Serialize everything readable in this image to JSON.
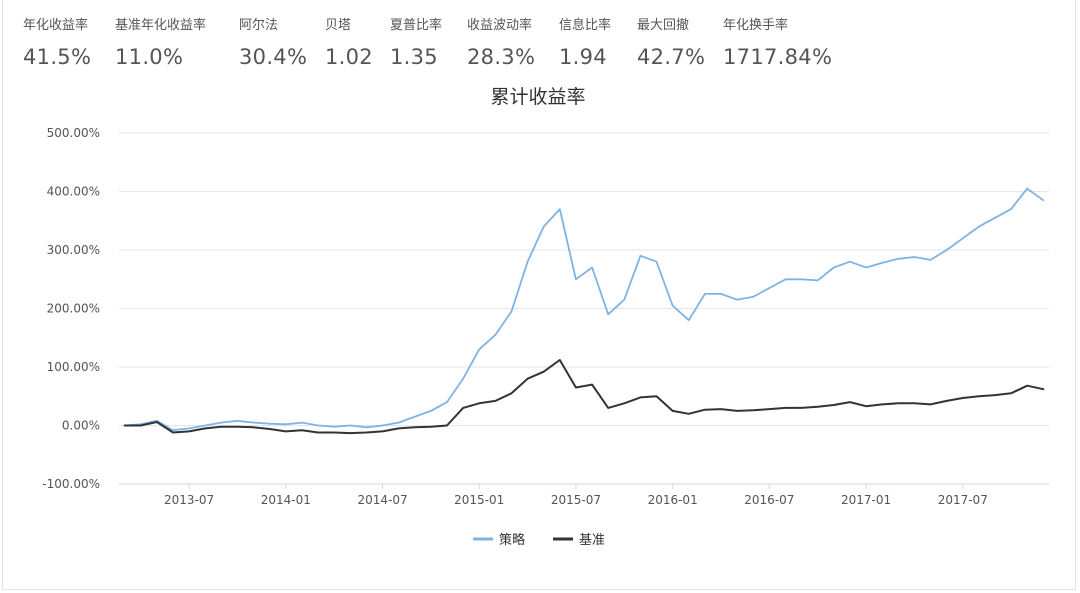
{
  "metrics": [
    {
      "label": "年化收益率",
      "value": "41.5%"
    },
    {
      "label": "基准年化收益率",
      "value": "11.0%"
    },
    {
      "label": "阿尔法",
      "value": "30.4%"
    },
    {
      "label": "贝塔",
      "value": "1.02"
    },
    {
      "label": "夏普比率",
      "value": "1.35"
    },
    {
      "label": "收益波动率",
      "value": "28.3%"
    },
    {
      "label": "信息比率",
      "value": "1.94"
    },
    {
      "label": "最大回撤",
      "value": "42.7%"
    },
    {
      "label": "年化换手率",
      "value": "1717.84%"
    }
  ],
  "colors": {
    "strategy": "#7fb3e3",
    "benchmark": "#333333",
    "grid": "#e6e6e6",
    "axis": "#cfd9e8"
  },
  "chart_data": {
    "type": "line",
    "title": "累计收益率",
    "ylim": [
      -100,
      500
    ],
    "yticks": [
      "500.00%",
      "400.00%",
      "300.00%",
      "200.00%",
      "100.00%",
      "0.00%",
      "-100.00%"
    ],
    "xticks": [
      "2013-07",
      "2014-01",
      "2014-07",
      "2015-01",
      "2015-07",
      "2016-01",
      "2016-07",
      "2017-01",
      "2017-07"
    ],
    "x_range": [
      "2013-03",
      "2017-12"
    ],
    "grid": true,
    "legend_position": "bottom-center",
    "series": [
      {
        "name": "策略",
        "color": "#7fb3e3",
        "points": [
          [
            "2013-03",
            0
          ],
          [
            "2013-04",
            2
          ],
          [
            "2013-05",
            8
          ],
          [
            "2013-06",
            -8
          ],
          [
            "2013-07",
            -5
          ],
          [
            "2013-08",
            0
          ],
          [
            "2013-09",
            5
          ],
          [
            "2013-10",
            8
          ],
          [
            "2013-11",
            5
          ],
          [
            "2013-12",
            3
          ],
          [
            "2014-01",
            2
          ],
          [
            "2014-02",
            5
          ],
          [
            "2014-03",
            0
          ],
          [
            "2014-04",
            -2
          ],
          [
            "2014-05",
            0
          ],
          [
            "2014-06",
            -3
          ],
          [
            "2014-07",
            0
          ],
          [
            "2014-08",
            5
          ],
          [
            "2014-09",
            15
          ],
          [
            "2014-10",
            25
          ],
          [
            "2014-11",
            40
          ],
          [
            "2014-12",
            80
          ],
          [
            "2015-01",
            130
          ],
          [
            "2015-02",
            155
          ],
          [
            "2015-03",
            195
          ],
          [
            "2015-04",
            280
          ],
          [
            "2015-05",
            340
          ],
          [
            "2015-06",
            370
          ],
          [
            "2015-07",
            250
          ],
          [
            "2015-08",
            270
          ],
          [
            "2015-09",
            190
          ],
          [
            "2015-10",
            215
          ],
          [
            "2015-11",
            290
          ],
          [
            "2015-12",
            280
          ],
          [
            "2016-01",
            205
          ],
          [
            "2016-02",
            180
          ],
          [
            "2016-03",
            225
          ],
          [
            "2016-04",
            225
          ],
          [
            "2016-05",
            215
          ],
          [
            "2016-06",
            220
          ],
          [
            "2016-07",
            235
          ],
          [
            "2016-08",
            250
          ],
          [
            "2016-09",
            250
          ],
          [
            "2016-10",
            248
          ],
          [
            "2016-11",
            270
          ],
          [
            "2016-12",
            280
          ],
          [
            "2017-01",
            270
          ],
          [
            "2017-02",
            278
          ],
          [
            "2017-03",
            285
          ],
          [
            "2017-04",
            288
          ],
          [
            "2017-05",
            283
          ],
          [
            "2017-06",
            300
          ],
          [
            "2017-07",
            320
          ],
          [
            "2017-08",
            340
          ],
          [
            "2017-09",
            355
          ],
          [
            "2017-10",
            370
          ],
          [
            "2017-11",
            405
          ],
          [
            "2017-12",
            385
          ]
        ]
      },
      {
        "name": "基准",
        "color": "#333333",
        "points": [
          [
            "2013-03",
            0
          ],
          [
            "2013-04",
            0
          ],
          [
            "2013-05",
            6
          ],
          [
            "2013-06",
            -12
          ],
          [
            "2013-07",
            -10
          ],
          [
            "2013-08",
            -5
          ],
          [
            "2013-09",
            -2
          ],
          [
            "2013-10",
            -2
          ],
          [
            "2013-11",
            -3
          ],
          [
            "2013-12",
            -6
          ],
          [
            "2014-01",
            -10
          ],
          [
            "2014-02",
            -8
          ],
          [
            "2014-03",
            -12
          ],
          [
            "2014-04",
            -12
          ],
          [
            "2014-05",
            -13
          ],
          [
            "2014-06",
            -12
          ],
          [
            "2014-07",
            -10
          ],
          [
            "2014-08",
            -5
          ],
          [
            "2014-09",
            -3
          ],
          [
            "2014-10",
            -2
          ],
          [
            "2014-11",
            0
          ],
          [
            "2014-12",
            30
          ],
          [
            "2015-01",
            38
          ],
          [
            "2015-02",
            42
          ],
          [
            "2015-03",
            55
          ],
          [
            "2015-04",
            80
          ],
          [
            "2015-05",
            92
          ],
          [
            "2015-06",
            112
          ],
          [
            "2015-07",
            65
          ],
          [
            "2015-08",
            70
          ],
          [
            "2015-09",
            30
          ],
          [
            "2015-10",
            38
          ],
          [
            "2015-11",
            48
          ],
          [
            "2015-12",
            50
          ],
          [
            "2016-01",
            25
          ],
          [
            "2016-02",
            20
          ],
          [
            "2016-03",
            27
          ],
          [
            "2016-04",
            28
          ],
          [
            "2016-05",
            25
          ],
          [
            "2016-06",
            26
          ],
          [
            "2016-07",
            28
          ],
          [
            "2016-08",
            30
          ],
          [
            "2016-09",
            30
          ],
          [
            "2016-10",
            32
          ],
          [
            "2016-11",
            35
          ],
          [
            "2016-12",
            40
          ],
          [
            "2017-01",
            33
          ],
          [
            "2017-02",
            36
          ],
          [
            "2017-03",
            38
          ],
          [
            "2017-04",
            38
          ],
          [
            "2017-05",
            36
          ],
          [
            "2017-06",
            42
          ],
          [
            "2017-07",
            47
          ],
          [
            "2017-08",
            50
          ],
          [
            "2017-09",
            52
          ],
          [
            "2017-10",
            55
          ],
          [
            "2017-11",
            68
          ],
          [
            "2017-12",
            62
          ]
        ]
      }
    ]
  }
}
